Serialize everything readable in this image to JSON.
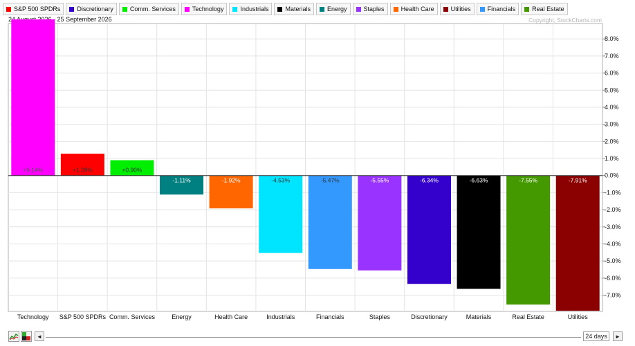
{
  "legend": [
    {
      "label": "S&P 500 SPDRs",
      "color": "#ff0000"
    },
    {
      "label": "Discretionary",
      "color": "#3300cc"
    },
    {
      "label": "Comm. Services",
      "color": "#00ee00"
    },
    {
      "label": "Technology",
      "color": "#ff00ff"
    },
    {
      "label": "Industrials",
      "color": "#00e5ff"
    },
    {
      "label": "Materials",
      "color": "#000000"
    },
    {
      "label": "Energy",
      "color": "#008080"
    },
    {
      "label": "Staples",
      "color": "#9933ff"
    },
    {
      "label": "Health Care",
      "color": "#ff6600"
    },
    {
      "label": "Utilities",
      "color": "#8b0000"
    },
    {
      "label": "Financials",
      "color": "#3399ff"
    },
    {
      "label": "Real Estate",
      "color": "#449900"
    }
  ],
  "header": {
    "date_range": "24 August 2026 - 25 September 2026",
    "copyright": "Copyright, StockCharts.com"
  },
  "controls": {
    "chart_icon": "line-chart-icon",
    "view_icon": "bar-view-icon",
    "prev_glyph": "◄",
    "next_glyph": "►",
    "days_label": "24 days"
  },
  "chart_data": {
    "type": "bar",
    "categories": [
      "Technology",
      "S&P 500 SPDRs",
      "Comm. Services",
      "Energy",
      "Health Care",
      "Industrials",
      "Financials",
      "Staples",
      "Discretionary",
      "Materials",
      "Real Estate",
      "Utilities"
    ],
    "values": [
      9.14,
      1.28,
      0.9,
      -1.11,
      -1.92,
      -4.53,
      -5.47,
      -5.55,
      -6.34,
      -6.63,
      -7.55,
      -7.91
    ],
    "value_labels": [
      "+9.14%",
      "+1.28%",
      "+0.90%",
      "-1.11%",
      "-1.92%",
      "-4.53%",
      "-5.47%",
      "-5.55%",
      "-6.34%",
      "-6.63%",
      "-7.55%",
      "-7.91%"
    ],
    "colors": [
      "#ff00ff",
      "#ff0000",
      "#00ee00",
      "#008080",
      "#ff6600",
      "#00e5ff",
      "#3399ff",
      "#9933ff",
      "#3300cc",
      "#000000",
      "#449900",
      "#8b0000"
    ],
    "value_label_colors": [
      "#555555",
      "#333333",
      "#333333",
      "#ffffff",
      "#ffffff",
      "#333333",
      "#333333",
      "#ffffff",
      "#ffffff",
      "#ffffff",
      "#ffffff",
      "#ffffff"
    ],
    "yticks": [
      8,
      7,
      6,
      5,
      4,
      3,
      2,
      1,
      0,
      -1,
      -2,
      -3,
      -4,
      -5,
      -6,
      -7
    ],
    "ytick_labels": [
      "8.0%",
      "7.0%",
      "6.0%",
      "5.0%",
      "4.0%",
      "3.0%",
      "2.0%",
      "1.0%",
      "0.0%",
      "-1.0%",
      "-2.0%",
      "-3.0%",
      "-4.0%",
      "-5.0%",
      "-6.0%",
      "-7.0%"
    ],
    "ylim": [
      -7.95,
      8.9
    ],
    "axis_position": "right",
    "grid": true,
    "xlabel": "",
    "ylabel": ""
  }
}
